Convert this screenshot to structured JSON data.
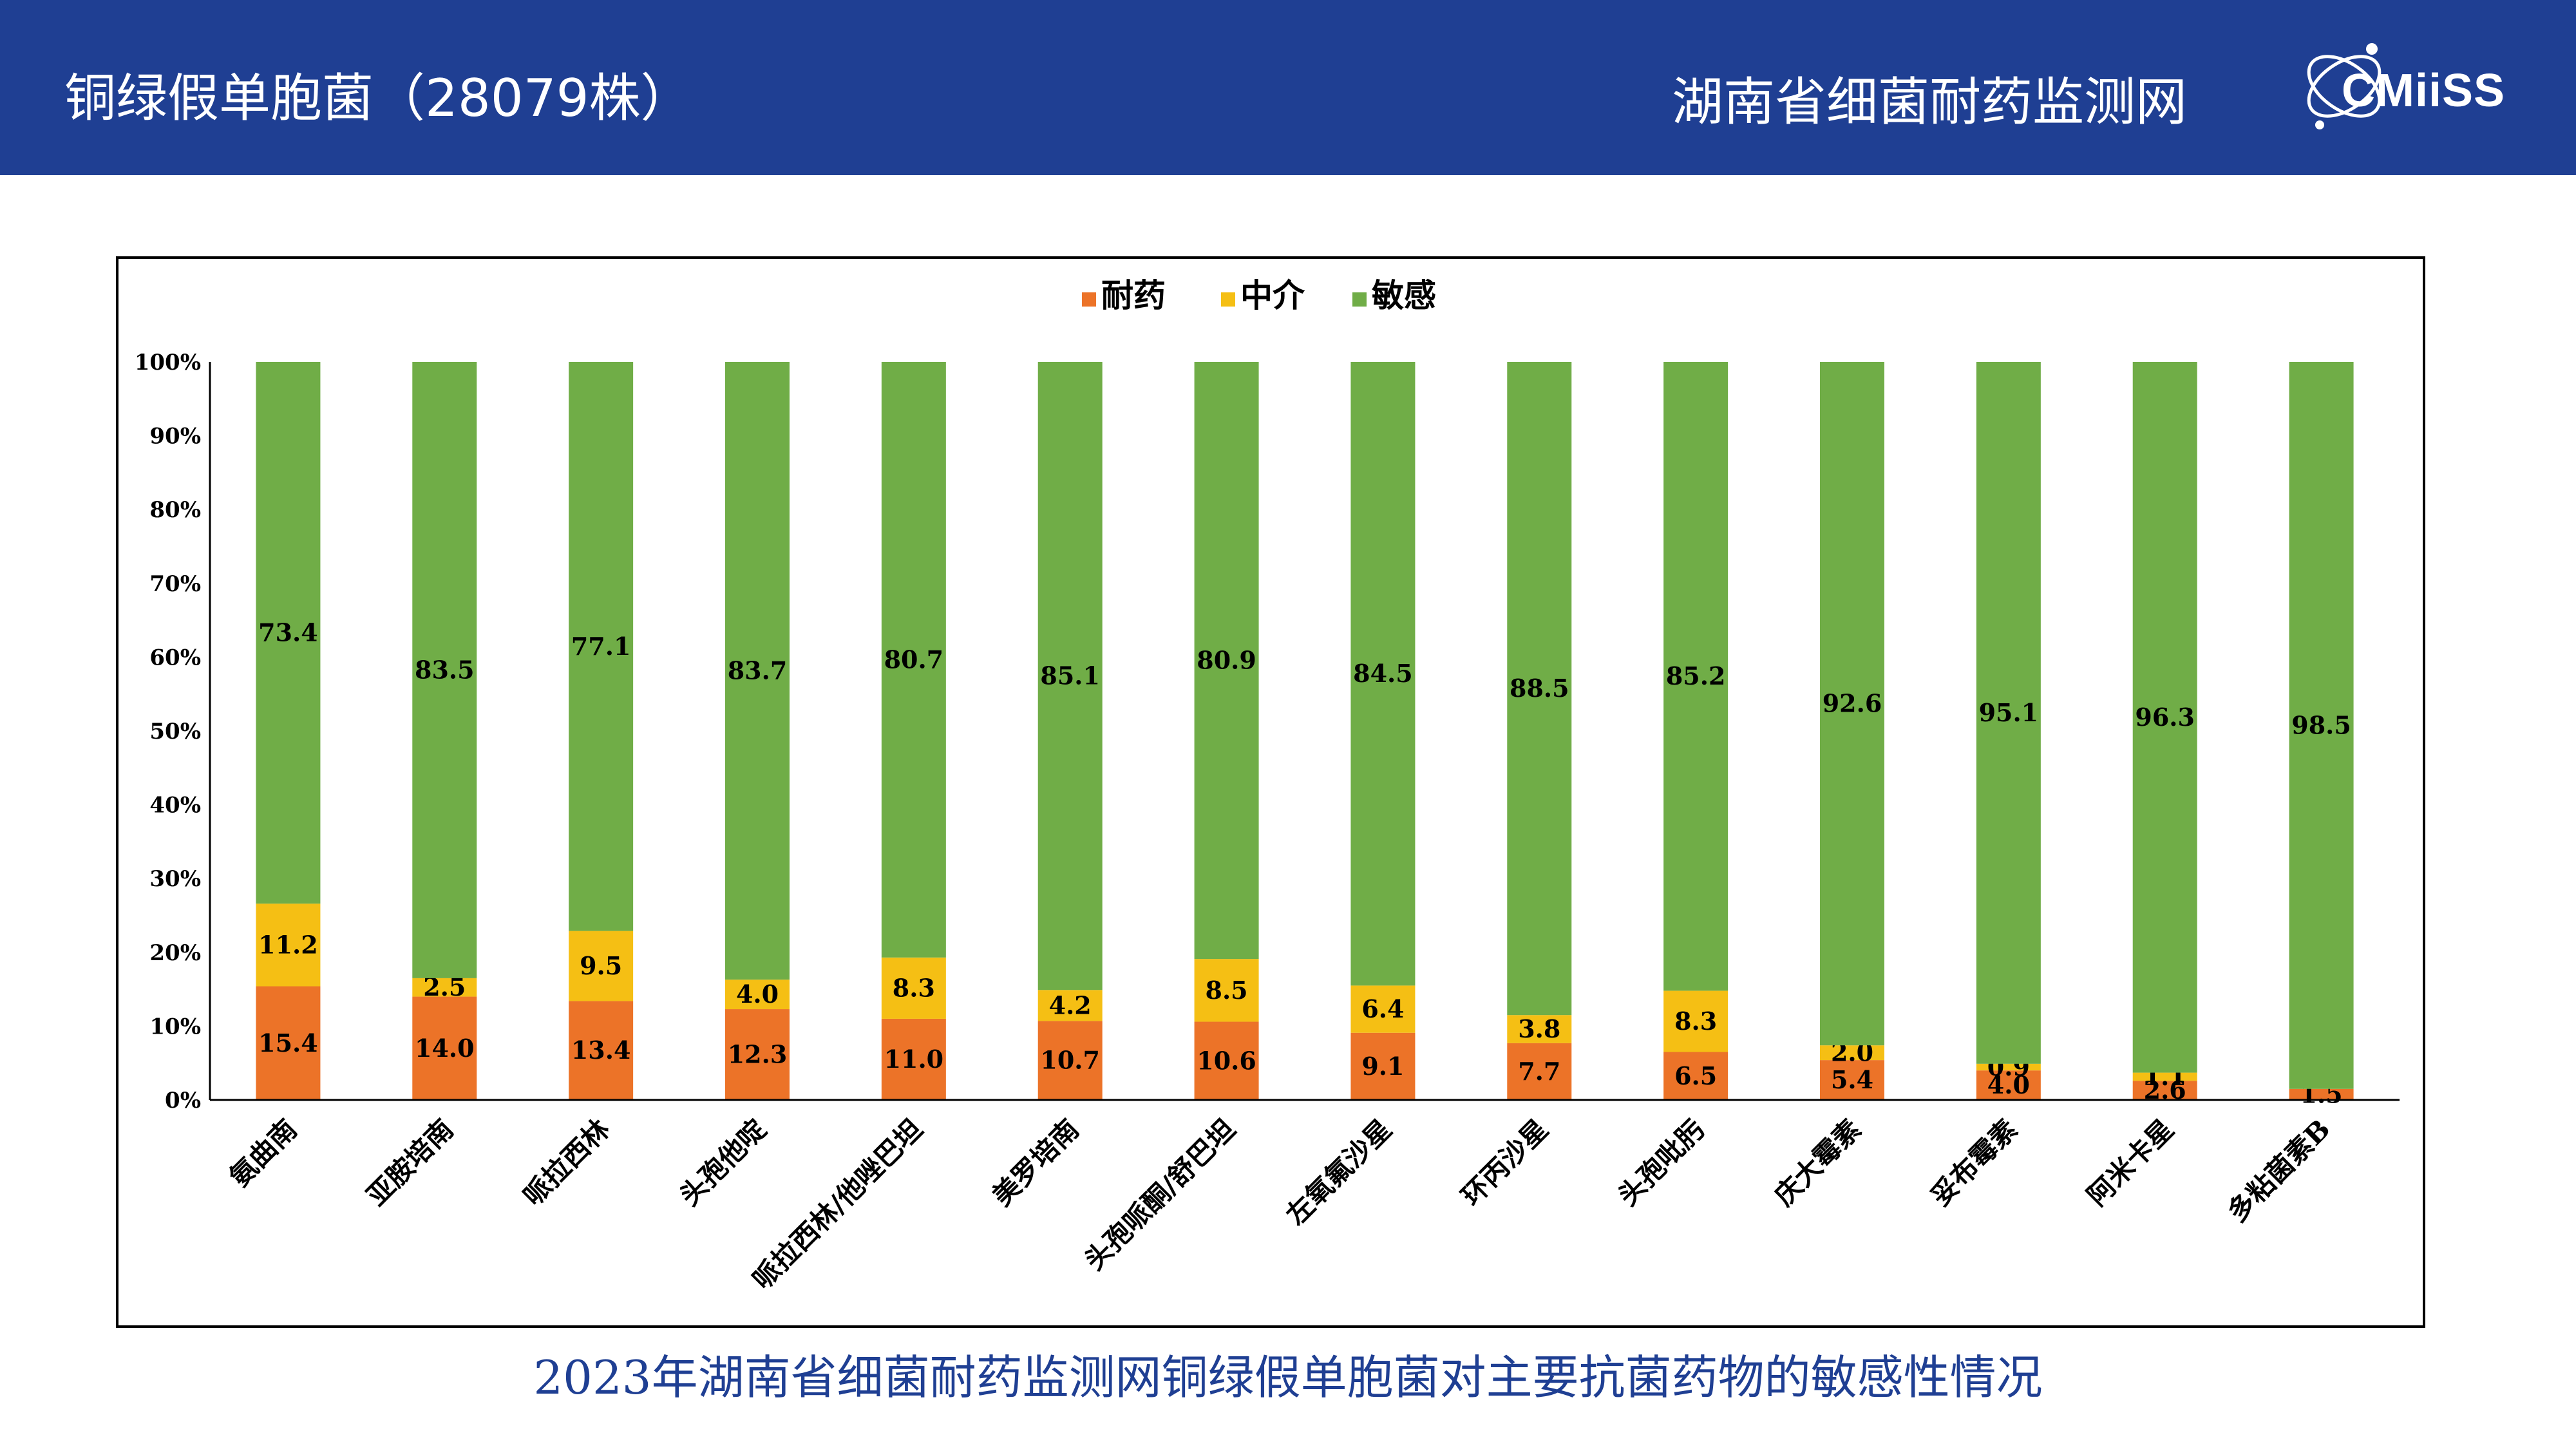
{
  "header": {
    "title": "铜绿假单胞菌（28079株）",
    "org": "湖南省细菌耐药监测网",
    "logo_text": "CMiiSS"
  },
  "caption": "2023年湖南省细菌耐药监测网铜绿假单胞菌对主要抗菌药物的敏感性情况",
  "colors": {
    "header_bg": "#1f3f93",
    "resistant": "#ec7328",
    "intermediate": "#f5bf14",
    "susceptible": "#70ad47"
  },
  "chart_data": {
    "type": "bar",
    "stacked": true,
    "percent": true,
    "legend_position": "top-center",
    "ylim": [
      0,
      100
    ],
    "yticks": [
      "0%",
      "10%",
      "20%",
      "30%",
      "40%",
      "50%",
      "60%",
      "70%",
      "80%",
      "90%",
      "100%"
    ],
    "categories": [
      "氨曲南",
      "亚胺培南",
      "哌拉西林",
      "头孢他啶",
      "哌拉西林/他唑巴坦",
      "美罗培南",
      "头孢哌酮/舒巴坦",
      "左氧氟沙星",
      "环丙沙星",
      "头孢吡肟",
      "庆大霉素",
      "妥布霉素",
      "阿米卡星",
      "多粘菌素B"
    ],
    "series": [
      {
        "name": "耐药",
        "color": "#ec7328",
        "values": [
          15.4,
          14.0,
          13.4,
          12.3,
          11.0,
          10.7,
          10.6,
          9.1,
          7.7,
          6.5,
          5.4,
          4.0,
          2.6,
          1.5
        ]
      },
      {
        "name": "中介",
        "color": "#f5bf14",
        "values": [
          11.2,
          2.5,
          9.5,
          4.0,
          8.3,
          4.2,
          8.5,
          6.4,
          3.8,
          8.3,
          2.0,
          0.9,
          1.1,
          null
        ]
      },
      {
        "name": "敏感",
        "color": "#70ad47",
        "values": [
          73.4,
          83.5,
          77.1,
          83.7,
          80.7,
          85.1,
          80.9,
          84.5,
          88.5,
          85.2,
          92.6,
          95.1,
          96.3,
          98.5
        ]
      }
    ]
  }
}
